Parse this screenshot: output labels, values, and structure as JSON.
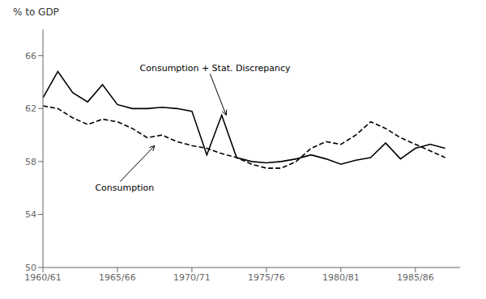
{
  "chart_data": {
    "type": "line",
    "ylabel": "% to GDP",
    "x": [
      1960,
      1961,
      1962,
      1963,
      1964,
      1965,
      1966,
      1967,
      1968,
      1969,
      1970,
      1971,
      1972,
      1973,
      1974,
      1975,
      1976,
      1977,
      1978,
      1979,
      1980,
      1981,
      1982,
      1983,
      1984,
      1985,
      1986,
      1987
    ],
    "series": [
      {
        "color": "#000000",
        "line_style": "solid",
        "values": [
          62.8,
          64.8,
          63.2,
          62.5,
          63.8,
          62.3,
          62.0,
          62.0,
          62.1,
          62.0,
          61.8,
          58.5,
          61.5,
          58.3,
          58.0,
          57.9,
          58.0,
          58.2,
          58.5,
          58.2,
          57.8,
          58.1,
          58.3,
          59.4,
          58.2,
          59.0,
          59.3,
          59.0
        ]
      },
      {
        "color": "#000000",
        "line_style": "dashed",
        "values": [
          62.2,
          62.0,
          61.3,
          60.8,
          61.2,
          61.0,
          60.5,
          59.8,
          60.0,
          59.5,
          59.2,
          59.0,
          58.6,
          58.3,
          57.8,
          57.5,
          57.5,
          58.0,
          59.0,
          59.5,
          59.3,
          60.0,
          61.0,
          60.5,
          59.8,
          59.3,
          58.8,
          58.3
        ]
      }
    ],
    "xlim": [
      1960,
      1988
    ],
    "xticks": [
      {
        "value": 1960,
        "label": "1960/61"
      },
      {
        "value": 1965,
        "label": "1965/66"
      },
      {
        "value": 1970,
        "label": "1970/71"
      },
      {
        "value": 1975,
        "label": "1975/76"
      },
      {
        "value": 1980,
        "label": "1980/81"
      },
      {
        "value": 1985,
        "label": "1985/86"
      }
    ],
    "ylim": [
      50,
      68
    ],
    "yticks": [
      50,
      54,
      58,
      62,
      66
    ],
    "grid": false,
    "annotations": [
      {
        "text": "Consumption + Stat. Discrepancy",
        "x": 1972.3,
        "y": 61.5,
        "text_x": 1966.5,
        "text_y": 64.8,
        "align": "bottom"
      },
      {
        "text": "Consumption",
        "x": 1967.5,
        "y": 59.2,
        "text_x": 1963.5,
        "text_y": 56.3,
        "align": "top"
      }
    ]
  }
}
